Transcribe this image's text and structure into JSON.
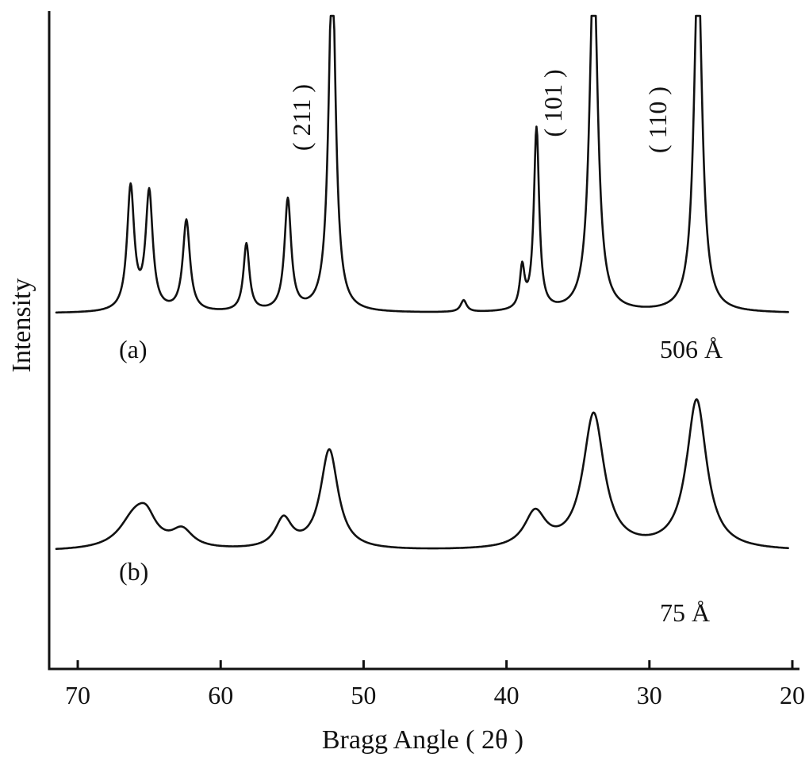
{
  "chart_data": {
    "type": "line",
    "title": "",
    "xlabel": "Bragg Angle ( 2θ )",
    "ylabel": "Intensity",
    "xlim": [
      72,
      19.5
    ],
    "x_reversed": true,
    "xticks": [
      70,
      60,
      50,
      40,
      30,
      20
    ],
    "xtick_labels": [
      "70",
      "60",
      "50",
      "40",
      "30",
      "20"
    ],
    "y_units": "arbitrary (offset traces, clipped at top)",
    "grid": false,
    "series": [
      {
        "name": "(a)",
        "annotation": "506 Å",
        "baseline": 0.45,
        "peaks": [
          {
            "x": 66.3,
            "height": 0.42,
            "width": 0.3
          },
          {
            "x": 65.0,
            "height": 0.4,
            "width": 0.3
          },
          {
            "x": 62.4,
            "height": 0.31,
            "width": 0.3
          },
          {
            "x": 58.2,
            "height": 0.23,
            "width": 0.25
          },
          {
            "x": 55.3,
            "height": 0.38,
            "width": 0.28
          },
          {
            "x": 52.2,
            "height": 1.2,
            "width": 0.3
          },
          {
            "x": 43.0,
            "height": 0.04,
            "width": 0.25
          },
          {
            "x": 38.9,
            "height": 0.14,
            "width": 0.2
          },
          {
            "x": 37.9,
            "height": 0.62,
            "width": 0.22
          },
          {
            "x": 33.9,
            "height": 1.2,
            "width": 0.35
          },
          {
            "x": 26.6,
            "height": 1.2,
            "width": 0.35
          }
        ]
      },
      {
        "name": "(b)",
        "annotation": "75 Å",
        "baseline": 0.06,
        "peaks": [
          {
            "x": 66.0,
            "height": 0.11,
            "width": 1.3
          },
          {
            "x": 65.2,
            "height": 0.07,
            "width": 0.8
          },
          {
            "x": 62.7,
            "height": 0.06,
            "width": 0.9
          },
          {
            "x": 55.6,
            "height": 0.1,
            "width": 0.7
          },
          {
            "x": 52.4,
            "height": 0.34,
            "width": 0.75
          },
          {
            "x": 38.0,
            "height": 0.12,
            "width": 0.9
          },
          {
            "x": 33.9,
            "height": 0.46,
            "width": 0.9
          },
          {
            "x": 26.7,
            "height": 0.51,
            "width": 0.85
          }
        ]
      }
    ],
    "annotations": [
      {
        "text": "( 211 )",
        "x": 54.5
      },
      {
        "text": "( 101 )",
        "x": 35.6
      },
      {
        "text": "( 110 )",
        "x": 28.7
      }
    ]
  }
}
